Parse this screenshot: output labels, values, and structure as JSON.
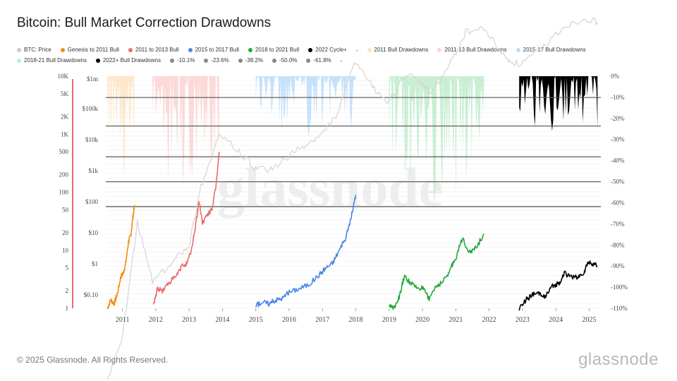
{
  "title": "Bitcoin: Bull Market Correction Drawdowns",
  "legend": [
    {
      "label": "BTC: Price",
      "color": "#c8c8c8"
    },
    {
      "label": "Genesis to 2011 Bull",
      "color": "#f28c10"
    },
    {
      "label": "2011 to 2013 Bull",
      "color": "#ec6b6b"
    },
    {
      "label": "2015 to 2017 Bull",
      "color": "#4a86e8"
    },
    {
      "label": "2018 to 2021 Bull",
      "color": "#22a83a"
    },
    {
      "label": "2022 Cycle+",
      "color": "#000000"
    },
    {
      "label": "-",
      "color": ""
    },
    {
      "label": "2011 Bull Drawdowns",
      "color": "#fde3c2"
    },
    {
      "label": "2011-13 Bull Drawdowns",
      "color": "#fbd3d3"
    },
    {
      "label": "2015-17 Bull Drawdowns",
      "color": "#bcdcfa"
    },
    {
      "label": "2018-21 Bull Drawdowns",
      "color": "#bfeccb"
    },
    {
      "label": "2022+ Bull Drawdowns",
      "color": "#000000"
    },
    {
      "label": "-10.1%",
      "color": "#888888"
    },
    {
      "label": "-23.6%",
      "color": "#888888"
    },
    {
      "label": "-38.2%",
      "color": "#888888"
    },
    {
      "label": "-50.0%",
      "color": "#888888"
    },
    {
      "label": "-61.8%",
      "color": "#888888"
    },
    {
      "label": "-",
      "color": ""
    }
  ],
  "footer": "© 2025 Glassnode. All Rights Reserved.",
  "brand": "glassnode",
  "watermark": "glassnode",
  "chart_data": {
    "type": "line",
    "left_axis_ticks": [
      "10K",
      "5K",
      "2K",
      "1K",
      "500",
      "200",
      "100",
      "50",
      "20",
      "10",
      "5",
      "2",
      "1"
    ],
    "price_axis_ticks": [
      "$1m",
      "$100k",
      "$10k",
      "$1k",
      "$100",
      "$10",
      "$1",
      "$0.10"
    ],
    "right_axis_ticks": [
      "0%",
      "-10%",
      "-20%",
      "-30%",
      "-40%",
      "-50%",
      "-60%",
      "-70%",
      "-80%",
      "-90%",
      "-100%",
      "-110%"
    ],
    "x_ticks": [
      "2011",
      "2012",
      "2013",
      "2014",
      "2015",
      "2016",
      "2017",
      "2018",
      "2019",
      "2020",
      "2021",
      "2022",
      "2023",
      "2024",
      "2025"
    ],
    "ylim_right": [
      -110,
      0
    ],
    "fib_levels": [
      -10.1,
      -23.6,
      -38.2,
      -50.0,
      -61.8
    ],
    "drawdown_windows": [
      {
        "name": "2011 Bull Drawdowns",
        "start": 2010.55,
        "end": 2011.35,
        "color": "#fde3c2",
        "max_drawdown": -48
      },
      {
        "name": "2011-13 Bull Drawdowns",
        "start": 2011.9,
        "end": 2013.9,
        "color": "#fbd3d3",
        "max_drawdown": -60
      },
      {
        "name": "2015-17 Bull Drawdowns",
        "start": 2015.0,
        "end": 2018.0,
        "color": "#bcdcfa",
        "max_drawdown": -29
      },
      {
        "name": "2018-21 Bull Drawdowns",
        "start": 2019.0,
        "end": 2021.85,
        "color": "#bfeccb",
        "max_drawdown": -62
      },
      {
        "name": "2022+ Bull Drawdowns",
        "start": 2022.9,
        "end": 2025.25,
        "color": "#000000",
        "max_drawdown": -26
      }
    ],
    "series": [
      {
        "name": "Genesis to 2011 Bull",
        "color": "#f28c10",
        "x": [
          2010.55,
          2010.65,
          2010.75,
          2010.85,
          2010.95,
          2011.02,
          2011.1,
          2011.18,
          2011.25,
          2011.32,
          2011.37
        ],
        "y": [
          1,
          1.4,
          1.2,
          1.8,
          3.5,
          4,
          6,
          14,
          18,
          40,
          60
        ]
      },
      {
        "name": "2011 to 2013 Bull",
        "color": "#ec6b6b",
        "x": [
          2011.92,
          2012.05,
          2012.2,
          2012.4,
          2012.6,
          2012.8,
          2012.95,
          2013.1,
          2013.22,
          2013.3,
          2013.4,
          2013.55,
          2013.7,
          2013.8,
          2013.9
        ],
        "y": [
          1.1,
          2.2,
          2,
          2.8,
          3.5,
          5.5,
          6,
          12,
          35,
          70,
          30,
          40,
          55,
          120,
          500
        ]
      },
      {
        "name": "2015 to 2017 Bull",
        "color": "#4a86e8",
        "x": [
          2015.0,
          2015.2,
          2015.4,
          2015.6,
          2015.8,
          2016.0,
          2016.3,
          2016.6,
          2016.9,
          2017.1,
          2017.3,
          2017.5,
          2017.7,
          2017.85,
          2018.0
        ],
        "y": [
          1.1,
          1.3,
          1.2,
          1.4,
          1.5,
          1.9,
          2.2,
          2.6,
          3.8,
          5,
          6,
          10,
          16,
          35,
          90
        ]
      },
      {
        "name": "2018 to 2021 Bull",
        "color": "#22a83a",
        "x": [
          2019.0,
          2019.15,
          2019.3,
          2019.45,
          2019.6,
          2019.8,
          2020.0,
          2020.2,
          2020.4,
          2020.6,
          2020.8,
          2021.0,
          2021.2,
          2021.4,
          2021.6,
          2021.85
        ],
        "y": [
          1.1,
          1.05,
          1.6,
          3.5,
          2.9,
          2.3,
          2.2,
          1.5,
          2.4,
          2.8,
          4.3,
          7.5,
          16,
          9.5,
          11,
          19
        ]
      },
      {
        "name": "2022 Cycle+",
        "color": "#000000",
        "x": [
          2022.9,
          2023.1,
          2023.3,
          2023.5,
          2023.7,
          2023.9,
          2024.1,
          2024.25,
          2024.45,
          2024.65,
          2024.85,
          2024.95,
          2025.1,
          2025.25
        ],
        "y": [
          1,
          1.4,
          1.7,
          1.8,
          1.6,
          2.4,
          2.7,
          4,
          3.6,
          3.3,
          4.2,
          6,
          5.9,
          5.3
        ]
      },
      {
        "name": "BTC: Price",
        "color": "#d4d4d4",
        "x": [
          2010.55,
          2011.0,
          2011.45,
          2011.9,
          2012.5,
          2013.0,
          2013.35,
          2013.9,
          2014.5,
          2015.0,
          2015.5,
          2016.0,
          2016.5,
          2017.0,
          2017.5,
          2017.95,
          2018.5,
          2019.0,
          2019.5,
          2020.0,
          2020.25,
          2020.8,
          2021.3,
          2021.85,
          2022.5,
          2022.9,
          2023.5,
          2024.2,
          2024.9,
          2025.25
        ],
        "y": [
          0.06,
          0.3,
          30,
          3,
          6,
          13,
          120,
          1000,
          500,
          250,
          250,
          430,
          650,
          1000,
          2500,
          18000,
          6500,
          3600,
          11000,
          7200,
          5000,
          15000,
          58000,
          67000,
          20000,
          16000,
          27000,
          70000,
          100000,
          85000
        ]
      }
    ]
  }
}
